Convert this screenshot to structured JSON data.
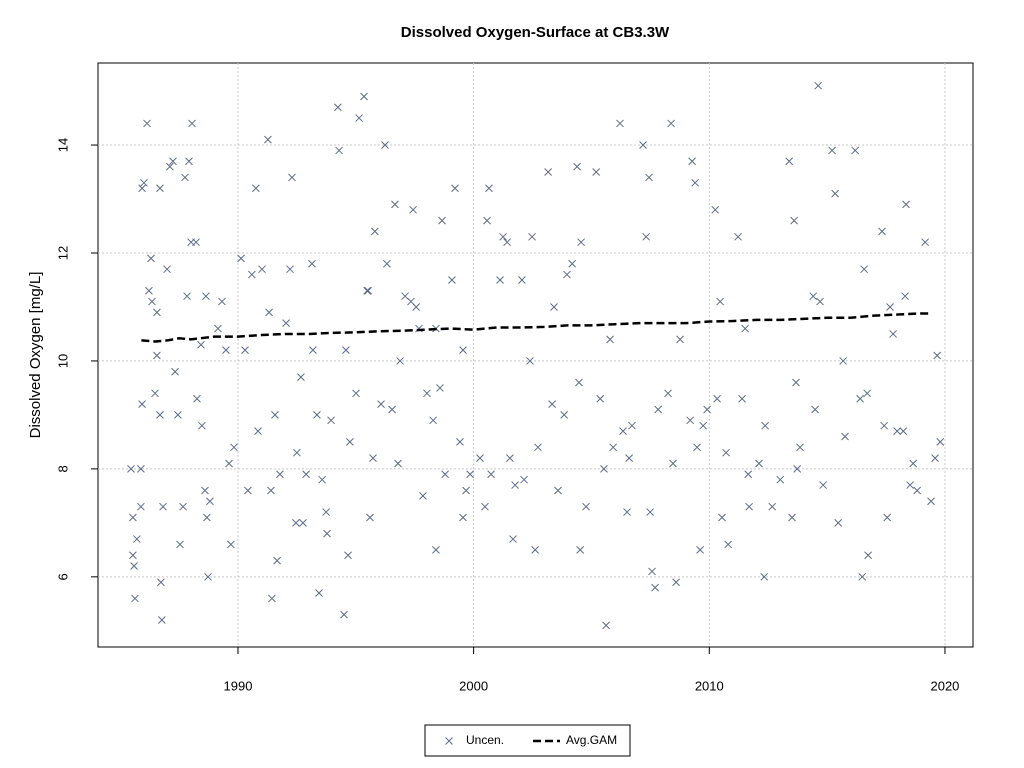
{
  "chart_data": {
    "type": "scatter",
    "title": "Dissolved Oxygen-Surface at CB3.3W",
    "y_label": "Dissolved Oxygen [mg/L]",
    "xlim": [
      1984.06,
      2021.19
    ],
    "ylim": [
      4.7,
      15.52
    ],
    "xticks": [
      1990,
      2000,
      2010,
      2020
    ],
    "yticks": [
      6,
      8,
      10,
      12,
      14
    ],
    "grid": true,
    "legend": "bottom",
    "series": [
      {
        "name": "Uncen.",
        "type": "scatter",
        "color": "#5c6b87",
        "x": [
          1985.46,
          1985.54,
          1985.54,
          1985.59,
          1985.63,
          1985.71,
          1985.88,
          1985.88,
          1985.93,
          1985.93,
          1986.01,
          1986.14,
          1986.22,
          1986.31,
          1986.35,
          1986.48,
          1986.56,
          1986.56,
          1986.69,
          1986.69,
          1986.73,
          1986.77,
          1986.82,
          1986.99,
          1987.11,
          1987.24,
          1987.33,
          1987.45,
          1987.54,
          1987.67,
          1987.75,
          1987.84,
          1987.92,
          1988.01,
          1988.05,
          1988.22,
          1988.26,
          1988.43,
          1988.47,
          1988.6,
          1988.64,
          1988.68,
          1988.73,
          1988.81,
          1989.15,
          1989.32,
          1989.49,
          1989.62,
          1989.7,
          1989.83,
          1990.13,
          1990.3,
          1990.42,
          1990.59,
          1990.76,
          1990.85,
          1991.02,
          1991.27,
          1991.32,
          1991.4,
          1991.44,
          1991.57,
          1991.66,
          1991.78,
          1992.04,
          1992.21,
          1992.29,
          1992.46,
          1992.5,
          1992.67,
          1992.76,
          1992.89,
          1993.14,
          1993.18,
          1993.35,
          1993.44,
          1993.57,
          1993.74,
          1993.78,
          1993.95,
          1994.24,
          1994.29,
          1994.5,
          1994.58,
          1994.67,
          1994.75,
          1995.01,
          1995.14,
          1995.35,
          1995.48,
          1995.52,
          1995.6,
          1995.73,
          1995.81,
          1996.07,
          1996.24,
          1996.32,
          1996.54,
          1996.66,
          1996.79,
          1996.88,
          1997.09,
          1997.34,
          1997.43,
          1997.56,
          1997.68,
          1997.85,
          1998.02,
          1998.28,
          1998.4,
          1998.4,
          1998.57,
          1998.66,
          1998.79,
          1999.08,
          1999.21,
          1999.42,
          1999.55,
          1999.55,
          1999.68,
          1999.85,
          2000.27,
          2000.48,
          2000.57,
          2000.65,
          2000.74,
          2001.12,
          2001.25,
          2001.42,
          2001.54,
          2001.67,
          2001.76,
          2002.05,
          2002.14,
          2002.39,
          2002.48,
          2002.61,
          2002.73,
          2003.16,
          2003.33,
          2003.41,
          2003.58,
          2003.84,
          2003.96,
          2004.18,
          2004.39,
          2004.47,
          2004.52,
          2004.56,
          2004.77,
          2005.2,
          2005.37,
          2005.53,
          2005.62,
          2005.79,
          2005.92,
          2006.21,
          2006.34,
          2006.51,
          2006.6,
          2006.72,
          2007.19,
          2007.32,
          2007.44,
          2007.49,
          2007.57,
          2007.7,
          2007.83,
          2008.25,
          2008.38,
          2008.46,
          2008.59,
          2008.76,
          2009.19,
          2009.27,
          2009.4,
          2009.48,
          2009.61,
          2009.74,
          2009.91,
          2010.25,
          2010.33,
          2010.46,
          2010.54,
          2010.71,
          2010.8,
          2011.22,
          2011.39,
          2011.52,
          2011.65,
          2011.69,
          2012.11,
          2012.33,
          2012.37,
          2012.67,
          2013.01,
          2013.39,
          2013.51,
          2013.6,
          2013.68,
          2013.73,
          2013.85,
          2014.41,
          2014.49,
          2014.62,
          2014.7,
          2014.83,
          2015.21,
          2015.34,
          2015.47,
          2015.68,
          2015.76,
          2016.19,
          2016.4,
          2016.49,
          2016.57,
          2016.7,
          2016.74,
          2017.33,
          2017.42,
          2017.55,
          2017.67,
          2017.8,
          2017.97,
          2018.23,
          2018.31,
          2018.35,
          2018.52,
          2018.65,
          2018.82,
          2019.16,
          2019.41,
          2019.58,
          2019.67,
          2019.8
        ],
        "values": [
          8.0,
          7.1,
          6.4,
          6.2,
          5.6,
          6.7,
          7.3,
          8.0,
          9.2,
          13.2,
          13.3,
          14.4,
          11.3,
          11.9,
          11.1,
          9.4,
          10.9,
          10.1,
          13.2,
          9.0,
          5.9,
          5.2,
          7.3,
          11.7,
          13.6,
          13.7,
          9.8,
          9.0,
          6.6,
          7.3,
          13.4,
          11.2,
          13.7,
          12.2,
          14.4,
          12.2,
          9.3,
          10.3,
          8.8,
          7.6,
          11.2,
          7.1,
          6.0,
          7.4,
          10.6,
          11.1,
          10.2,
          8.1,
          6.6,
          8.4,
          11.9,
          10.2,
          7.6,
          11.6,
          13.2,
          8.7,
          11.7,
          14.1,
          10.9,
          7.6,
          5.6,
          9.0,
          6.3,
          7.9,
          10.7,
          11.7,
          13.4,
          7.0,
          8.3,
          9.7,
          7.0,
          7.9,
          11.8,
          10.2,
          9.0,
          5.7,
          7.8,
          7.2,
          6.8,
          8.9,
          14.7,
          13.9,
          5.3,
          10.2,
          6.4,
          8.5,
          9.4,
          14.5,
          14.9,
          11.3,
          11.3,
          7.1,
          8.2,
          12.4,
          9.2,
          14.0,
          11.8,
          9.1,
          12.9,
          8.1,
          10.0,
          11.2,
          11.1,
          12.8,
          11.0,
          10.6,
          7.5,
          9.4,
          8.9,
          10.6,
          6.5,
          9.5,
          12.6,
          7.9,
          11.5,
          13.2,
          8.5,
          10.2,
          7.1,
          7.6,
          7.9,
          8.2,
          7.3,
          12.6,
          13.2,
          7.9,
          11.5,
          12.3,
          12.2,
          8.2,
          6.7,
          7.7,
          11.5,
          7.8,
          10.0,
          12.3,
          6.5,
          8.4,
          13.5,
          9.2,
          11.0,
          7.6,
          9.0,
          11.6,
          11.8,
          13.6,
          9.6,
          6.5,
          12.2,
          7.3,
          13.5,
          9.3,
          8.0,
          5.1,
          10.4,
          8.4,
          14.4,
          8.7,
          7.2,
          8.2,
          8.8,
          14.0,
          12.3,
          13.4,
          7.2,
          6.1,
          5.8,
          9.1,
          9.4,
          14.4,
          8.1,
          5.9,
          10.4,
          8.9,
          13.7,
          13.3,
          8.4,
          6.5,
          8.8,
          9.1,
          12.8,
          9.3,
          11.1,
          7.1,
          8.3,
          6.6,
          12.3,
          9.3,
          10.6,
          7.9,
          7.3,
          8.1,
          6.0,
          8.8,
          7.3,
          7.8,
          13.7,
          7.1,
          12.6,
          9.6,
          8.0,
          8.4,
          11.2,
          9.1,
          15.1,
          11.1,
          7.7,
          13.9,
          13.1,
          7.0,
          10.0,
          8.6,
          13.9,
          9.3,
          6.0,
          11.7,
          9.4,
          6.4,
          12.4,
          8.8,
          7.1,
          11.0,
          10.5,
          8.7,
          8.7,
          11.2,
          12.9,
          7.7,
          8.1,
          7.6,
          12.2,
          7.4,
          8.2,
          10.1,
          8.5
        ]
      },
      {
        "name": "Avg.GAM",
        "type": "line",
        "color": "#000000",
        "x": [
          1985.9,
          1986.5,
          1987,
          1987.5,
          1988,
          1989,
          1990,
          1991,
          1992,
          1993,
          1994,
          1995,
          1996,
          1997,
          1998,
          1999,
          2000,
          2001,
          2002,
          2003,
          2004,
          2005,
          2006,
          2007,
          2008,
          2009,
          2010,
          2011,
          2012,
          2013,
          2014,
          2015,
          2016,
          2017,
          2018,
          2019,
          2019.3
        ],
        "values": [
          10.38,
          10.36,
          10.38,
          10.42,
          10.4,
          10.45,
          10.45,
          10.48,
          10.5,
          10.5,
          10.52,
          10.53,
          10.55,
          10.56,
          10.58,
          10.6,
          10.58,
          10.62,
          10.62,
          10.63,
          10.66,
          10.66,
          10.68,
          10.7,
          10.7,
          10.7,
          10.73,
          10.74,
          10.76,
          10.76,
          10.78,
          10.8,
          10.8,
          10.84,
          10.86,
          10.88,
          10.88
        ]
      }
    ]
  }
}
